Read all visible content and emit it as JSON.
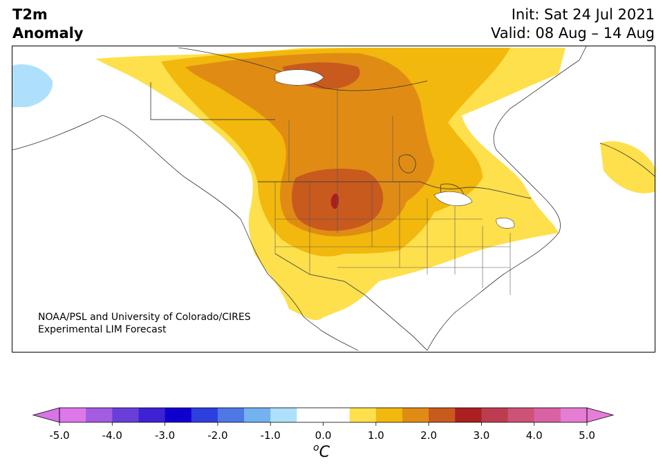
{
  "title": {
    "variable": "T2m",
    "kind": "Anomaly",
    "init": "Init: Sat 24 Jul 2021",
    "valid": "Valid: 08 Aug – 14 Aug"
  },
  "credit": {
    "line1": "NOAA/PSL and University of Colorado/CIRES",
    "line2": "Experimental LIM Forecast"
  },
  "colorbar": {
    "unit_sup": "o",
    "unit": "C",
    "ticks": [
      "-5.0",
      "-4.0",
      "-3.0",
      "-2.0",
      "-1.0",
      "0.0",
      "1.0",
      "2.0",
      "3.0",
      "4.0",
      "5.0"
    ],
    "colors": [
      "#dd77ea",
      "#a45ce0",
      "#6a3fd9",
      "#3d22d4",
      "#0f00d0",
      "#2d3fdd",
      "#4e78e5",
      "#74b1ef",
      "#aee0fb",
      "#ffffff",
      "#ffffff",
      "#fee04c",
      "#f2b80d",
      "#e08c14",
      "#c85a1e",
      "#aa1f1f",
      "#bd3c4f",
      "#cc5277",
      "#d962a4",
      "#e67cd4"
    ],
    "under_color": "#d775e8",
    "over_color": "#e77dd8"
  },
  "map": {
    "region": "North America",
    "colors": {
      "ocean": "#ffffff",
      "anom_0_5": "#fee04c",
      "anom_1_0": "#f2b80d",
      "anom_1_5": "#e08c14",
      "anom_2_0": "#c85a1e",
      "anom_2_5": "#aa1f1f",
      "anom_neg": "#aee0fb"
    }
  }
}
